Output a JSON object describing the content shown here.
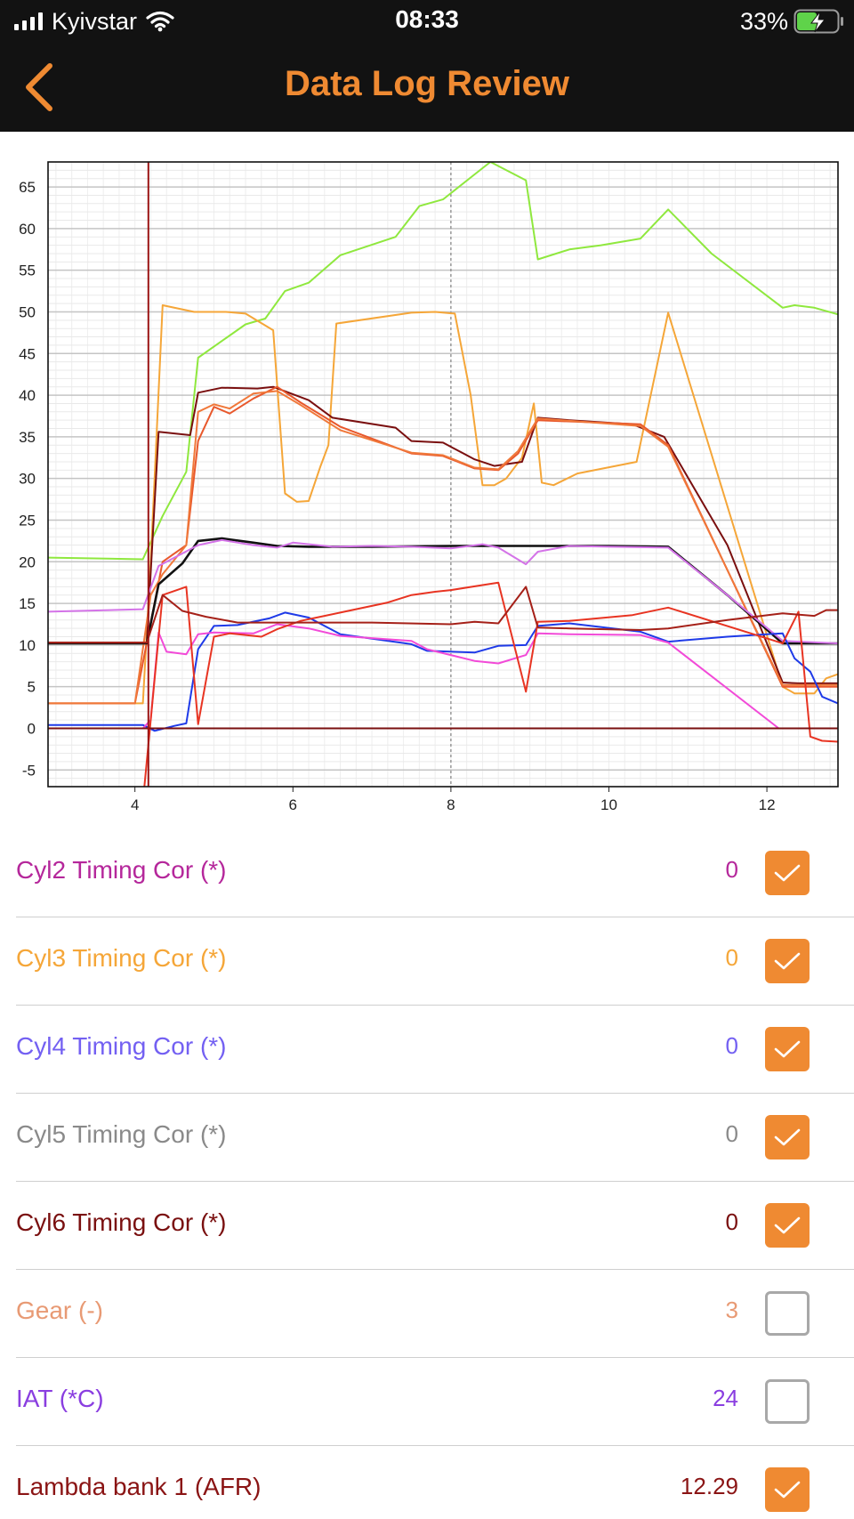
{
  "status_bar": {
    "carrier": "Kyivstar",
    "time": "08:33",
    "battery": "33%",
    "icons": [
      "signal-icon",
      "wifi-icon",
      "battery-charging-icon"
    ]
  },
  "nav": {
    "title": "Data Log Review",
    "back_icon": "chevron-left-icon",
    "accent": "#ef8a32"
  },
  "chart_data": {
    "type": "line",
    "xlim": [
      2.9,
      12.9
    ],
    "ylim": [
      -7,
      68
    ],
    "x_ticks": [
      "4",
      "6",
      "8",
      "10",
      "12"
    ],
    "y_ticks": [
      "65",
      "60",
      "55",
      "50",
      "45",
      "40",
      "35",
      "30",
      "25",
      "20",
      "15",
      "10",
      "5",
      "0",
      "-5"
    ],
    "grid": true,
    "cursor_x": 8,
    "series": [
      {
        "color": "#8fe83e",
        "x": [
          2.9,
          4.1,
          4.35,
          4.65,
          4.8,
          5.1,
          5.4,
          5.65,
          5.9,
          6.2,
          6.6,
          7.3,
          7.6,
          7.9,
          8.3,
          8.5,
          8.95,
          9.1,
          9.5,
          9.9,
          10.4,
          10.75,
          11.3,
          12.2,
          12.35,
          12.6,
          12.9
        ],
        "y": [
          20.5,
          20.3,
          25.5,
          30.8,
          44.5,
          46.5,
          48.5,
          49.2,
          52.5,
          53.5,
          56.8,
          59,
          62.7,
          63.5,
          66.5,
          68,
          65.8,
          56.3,
          57.5,
          58,
          58.8,
          62.3,
          57,
          50.5,
          50.8,
          50.5,
          49.7
        ]
      },
      {
        "color": "#f5a638",
        "x": [
          2.9,
          4.1,
          4.2,
          4.35,
          4.75,
          5.15,
          5.4,
          5.75,
          5.9,
          6.05,
          6.2,
          6.35,
          6.45,
          6.55,
          7.5,
          7.8,
          8.05,
          8.25,
          8.4,
          8.55,
          8.7,
          8.9,
          9.05,
          9.15,
          9.3,
          9.6,
          10.35,
          10.75,
          12.2,
          12.35,
          12.6,
          12.75,
          12.9
        ],
        "y": [
          3,
          3,
          20,
          50.8,
          50,
          50,
          49.8,
          47.8,
          28.2,
          27.2,
          27.3,
          31.5,
          34,
          48.6,
          49.9,
          50,
          49.8,
          40,
          29.2,
          29.2,
          30,
          32.5,
          39,
          29.5,
          29.2,
          30.6,
          32,
          49.9,
          5,
          4.2,
          4.2,
          6,
          6.5
        ]
      },
      {
        "color": "#7a0f0f",
        "x": [
          2.9,
          4.15,
          4.3,
          4.7,
          4.8,
          5.1,
          5.55,
          5.75,
          6.2,
          6.5,
          7.3,
          7.5,
          7.9,
          8.3,
          8.55,
          8.9,
          9.1,
          9.5,
          10.3,
          10.7,
          11.5,
          12.2,
          12.4,
          12.9
        ],
        "y": [
          10.3,
          10.3,
          35.6,
          35.2,
          40.3,
          40.9,
          40.8,
          41,
          39.4,
          37.3,
          36.1,
          34.5,
          34.3,
          32.3,
          31.5,
          32,
          37.3,
          37,
          36.5,
          35,
          22,
          5.5,
          5.4,
          5.4
        ]
      },
      {
        "color": "#e8582c",
        "x": [
          2.9,
          4.0,
          4.35,
          4.65,
          4.8,
          5.0,
          5.2,
          5.5,
          5.8,
          6.1,
          6.6,
          7.5,
          7.9,
          8.3,
          8.6,
          8.85,
          9.1,
          10.4,
          10.75,
          12.2,
          12.9
        ],
        "y": [
          3,
          3,
          20,
          22,
          34.5,
          38.6,
          37.8,
          39.6,
          41,
          39.1,
          36.2,
          33,
          32.7,
          31.2,
          31,
          33,
          37,
          36.5,
          34,
          5,
          5
        ]
      },
      {
        "color": "#f0783a",
        "x": [
          2.9,
          4.0,
          4.2,
          4.35,
          4.65,
          4.8,
          5.0,
          5.2,
          5.5,
          5.8,
          6.1,
          6.6,
          7.5,
          7.9,
          8.3,
          8.6,
          8.85,
          9.1,
          10.4,
          10.75,
          12.2,
          12.9
        ],
        "y": [
          3,
          3,
          16,
          18.5,
          22,
          38,
          38.9,
          38.4,
          40.2,
          40.5,
          38.8,
          35.8,
          33.1,
          32.8,
          31.3,
          31.1,
          33.3,
          37.2,
          36.3,
          33.8,
          5.2,
          5.2
        ]
      },
      {
        "color": "#111111",
        "x": [
          2.9,
          4.15,
          4.3,
          4.6,
          4.8,
          5.1,
          5.5,
          5.8,
          6.2,
          7.0,
          8.0,
          9.0,
          10.0,
          10.75,
          11.5,
          12.2,
          12.9
        ],
        "y": [
          10.2,
          10.2,
          17.3,
          19.8,
          22.5,
          22.8,
          22.3,
          21.9,
          21.8,
          21.8,
          21.9,
          21.9,
          21.9,
          21.8,
          16,
          10.2,
          10.2
        ]
      },
      {
        "color": "#d473e8",
        "x": [
          2.9,
          4.1,
          4.3,
          4.8,
          5.1,
          5.5,
          5.8,
          6.0,
          6.5,
          7.0,
          7.5,
          8.0,
          8.4,
          8.6,
          8.95,
          9.1,
          9.5,
          10.0,
          10.75,
          11.5,
          12.2,
          12.9
        ],
        "y": [
          14,
          14.3,
          19.5,
          22,
          22.6,
          22,
          21.7,
          22.3,
          21.8,
          21.9,
          21.8,
          21.6,
          22.1,
          21.7,
          19.7,
          21.2,
          21.9,
          21.8,
          21.7,
          16,
          10.5,
          10.2
        ]
      },
      {
        "color": "#1e3ae8",
        "x": [
          2.9,
          4.1,
          4.25,
          4.5,
          4.65,
          4.8,
          5.0,
          5.3,
          5.7,
          5.9,
          6.2,
          6.6,
          7.5,
          7.7,
          8.3,
          8.6,
          8.95,
          9.1,
          9.5,
          10.4,
          10.75,
          11.5,
          12.0,
          12.2,
          12.35,
          12.55,
          12.7,
          12.9
        ],
        "y": [
          0.4,
          0.4,
          -0.3,
          0.3,
          0.6,
          9.5,
          12.3,
          12.4,
          13.2,
          13.9,
          13.3,
          11.3,
          10.1,
          9.3,
          9.1,
          9.9,
          10,
          12.3,
          12.6,
          11.6,
          10.4,
          11,
          11.3,
          11.4,
          8.4,
          6.8,
          3.8,
          3
        ]
      },
      {
        "color": "#f24ad8",
        "x": [
          2.9,
          4.1,
          4.2,
          4.3,
          4.4,
          4.65,
          4.8,
          5.0,
          5.5,
          5.8,
          6.2,
          6.6,
          7.5,
          7.7,
          8.3,
          8.6,
          8.95,
          9.1,
          9.5,
          10.4,
          10.75,
          12.15
        ],
        "y": [
          0,
          0,
          1,
          11.5,
          9.2,
          8.9,
          11.3,
          11.5,
          11.4,
          12.5,
          12,
          11.1,
          10.5,
          9.5,
          8.1,
          7.8,
          8.8,
          11.4,
          11.3,
          11.2,
          10.3,
          0
        ]
      },
      {
        "color": "#e83422",
        "x": [
          4.12,
          4.35,
          4.65,
          4.8,
          5.0,
          5.2,
          5.6,
          5.8,
          6.1,
          6.4,
          7.2,
          7.5,
          7.8,
          8.0,
          8.4,
          8.6,
          8.95,
          9.1,
          9.5,
          10.3,
          10.75,
          12.1,
          12.2,
          12.4,
          12.55,
          12.7,
          12.9
        ],
        "y": [
          -7,
          16,
          17,
          0.5,
          11,
          11.4,
          11,
          11.9,
          12.9,
          13.5,
          15.1,
          16,
          16.4,
          16.6,
          17.2,
          17.5,
          4.4,
          12.8,
          12.9,
          13.6,
          14.5,
          10.5,
          10.2,
          14,
          -1,
          -1.5,
          -1.6
        ]
      },
      {
        "color": "#a52018",
        "x": [
          2.9,
          4.15,
          4.35,
          4.6,
          4.9,
          5.3,
          6.0,
          7.0,
          8.0,
          8.3,
          8.6,
          8.95,
          9.1,
          9.5,
          10.4,
          10.75,
          11.5,
          12.2,
          12.6,
          12.75,
          12.9
        ],
        "y": [
          10.3,
          10.3,
          16,
          14.1,
          13.4,
          12.7,
          12.7,
          12.7,
          12.5,
          12.8,
          12.6,
          17,
          12.1,
          12,
          11.8,
          12,
          13,
          13.8,
          13.5,
          14.2,
          14.2
        ]
      },
      {
        "color": "#7a0f0f",
        "x": [
          2.9,
          12.9
        ],
        "y": [
          0,
          0
        ]
      },
      {
        "color": "#9b1414",
        "x": [
          4.17,
          4.17
        ],
        "y": [
          -7,
          68
        ]
      }
    ]
  },
  "list": {
    "items": [
      {
        "label": "Cyl2 Timing Cor (*)",
        "value": "0",
        "checked": true,
        "color": "#b5279b"
      },
      {
        "label": "Cyl3 Timing Cor (*)",
        "value": "0",
        "checked": true,
        "color": "#f5a638"
      },
      {
        "label": "Cyl4 Timing Cor (*)",
        "value": "0",
        "checked": true,
        "color": "#7360f2"
      },
      {
        "label": "Cyl5 Timing Cor (*)",
        "value": "0",
        "checked": true,
        "color": "#8a8a8a"
      },
      {
        "label": "Cyl6 Timing Cor (*)",
        "value": "0",
        "checked": true,
        "color": "#7a1010"
      },
      {
        "label": "Gear (-)",
        "value": "3",
        "checked": false,
        "color": "#e89a74"
      },
      {
        "label": "IAT (*C)",
        "value": "24",
        "checked": false,
        "color": "#8a3ee0"
      },
      {
        "label": "Lambda bank 1 (AFR)",
        "value": "12.29",
        "checked": true,
        "color": "#8a1414"
      }
    ]
  }
}
